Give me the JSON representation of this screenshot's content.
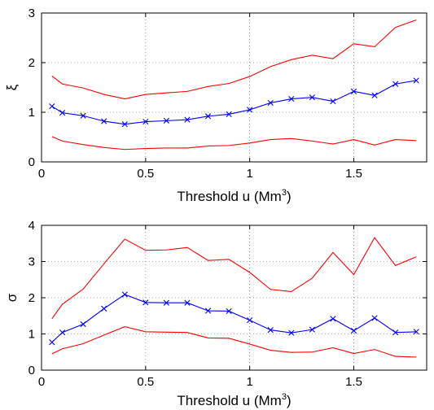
{
  "chart_data": [
    {
      "type": "line",
      "xlabel": "Threshold u (Mm",
      "xlabel_sup": "3",
      "xlabel_close": ")",
      "ylabel": "ξ",
      "xlim": [
        0,
        1.85
      ],
      "ylim": [
        0,
        3
      ],
      "xticks": [
        0,
        0.5,
        1,
        1.5
      ],
      "xtick_labels": [
        "0",
        "0.5",
        "1",
        "1.5"
      ],
      "yticks": [
        0,
        1,
        2,
        3
      ],
      "ytick_labels": [
        "0",
        "1",
        "2",
        "3"
      ],
      "grid": true,
      "x": [
        0.05,
        0.1,
        0.2,
        0.3,
        0.4,
        0.5,
        0.6,
        0.7,
        0.8,
        0.9,
        1.0,
        1.1,
        1.2,
        1.3,
        1.4,
        1.5,
        1.6,
        1.7,
        1.8
      ],
      "series": [
        {
          "color": "#ff0000",
          "marker": "none",
          "values": [
            1.73,
            1.57,
            1.49,
            1.36,
            1.27,
            1.36,
            1.39,
            1.42,
            1.52,
            1.58,
            1.72,
            1.92,
            2.06,
            2.15,
            2.08,
            2.38,
            2.32,
            2.71,
            2.86
          ]
        },
        {
          "color": "#0000ff",
          "marker": "x",
          "values": [
            1.12,
            0.99,
            0.93,
            0.82,
            0.76,
            0.81,
            0.83,
            0.85,
            0.92,
            0.96,
            1.05,
            1.19,
            1.27,
            1.3,
            1.22,
            1.42,
            1.34,
            1.57,
            1.64
          ]
        },
        {
          "color": "#ff0000",
          "marker": "none",
          "values": [
            0.51,
            0.42,
            0.35,
            0.29,
            0.25,
            0.27,
            0.28,
            0.28,
            0.32,
            0.33,
            0.38,
            0.45,
            0.47,
            0.42,
            0.36,
            0.45,
            0.34,
            0.45,
            0.43
          ]
        }
      ]
    },
    {
      "type": "line",
      "xlabel": "Threshold u (Mm",
      "xlabel_sup": "3",
      "xlabel_close": ")",
      "ylabel": "σ",
      "xlim": [
        0,
        1.85
      ],
      "ylim": [
        0,
        4
      ],
      "xticks": [
        0,
        0.5,
        1,
        1.5
      ],
      "xtick_labels": [
        "0",
        "0.5",
        "1",
        "1.5"
      ],
      "yticks": [
        0,
        1,
        2,
        3,
        4
      ],
      "ytick_labels": [
        "0",
        "1",
        "2",
        "3",
        "4"
      ],
      "grid": true,
      "x": [
        0.05,
        0.1,
        0.2,
        0.3,
        0.4,
        0.5,
        0.6,
        0.7,
        0.8,
        0.9,
        1.0,
        1.1,
        1.2,
        1.3,
        1.4,
        1.5,
        1.6,
        1.7,
        1.8
      ],
      "series": [
        {
          "color": "#ff0000",
          "marker": "none",
          "values": [
            1.42,
            1.82,
            2.24,
            2.94,
            3.62,
            3.31,
            3.32,
            3.39,
            3.03,
            3.06,
            2.7,
            2.23,
            2.17,
            2.54,
            3.25,
            2.64,
            3.66,
            2.89,
            3.13
          ]
        },
        {
          "color": "#0000ff",
          "marker": "x",
          "values": [
            0.77,
            1.04,
            1.27,
            1.7,
            2.09,
            1.87,
            1.86,
            1.86,
            1.64,
            1.63,
            1.38,
            1.11,
            1.03,
            1.12,
            1.42,
            1.09,
            1.44,
            1.04,
            1.06
          ]
        },
        {
          "color": "#ff0000",
          "marker": "none",
          "values": [
            0.45,
            0.59,
            0.73,
            0.97,
            1.2,
            1.06,
            1.05,
            1.04,
            0.89,
            0.88,
            0.72,
            0.55,
            0.49,
            0.5,
            0.62,
            0.46,
            0.57,
            0.38,
            0.36
          ]
        }
      ]
    }
  ]
}
